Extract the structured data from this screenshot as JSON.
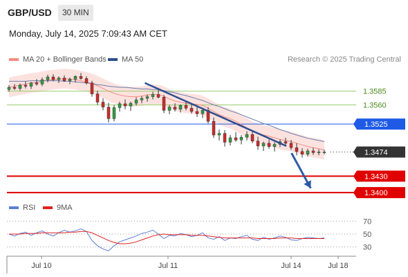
{
  "header": {
    "pair": "GBP/USD",
    "timeframe": "30 MIN",
    "timestamp": "Monday, July 14, 2025 7:09:43 AM CET"
  },
  "legend": {
    "bollinger": "MA 20 + Bollinger Bands",
    "ma50": "MA 50",
    "credit": "Research © 2025 Trading Central",
    "colors": {
      "bollinger": "#f28b82",
      "ma50": "#2e4d8f"
    }
  },
  "rsi_legend": {
    "rsi": "RSI",
    "ma": "9MA",
    "colors": {
      "rsi": "#5b7fd6",
      "ma": "#e02020"
    }
  },
  "chart_data": [
    {
      "type": "candlestick",
      "title": "",
      "x_labels": [
        "Jul 10",
        "Jul 11",
        "Jul 14",
        "Jul 18"
      ],
      "ylim": [
        1.3385,
        1.3625
      ],
      "levels": [
        {
          "value": 1.3585,
          "label": "1.3585",
          "kind": "resistance",
          "color": "#9acd6a"
        },
        {
          "value": 1.356,
          "label": "1.3560",
          "kind": "resistance",
          "color": "#9acd6a"
        },
        {
          "value": 1.3525,
          "label": "1.3525",
          "kind": "pivot",
          "color": "#1e5ae6"
        },
        {
          "value": 1.3474,
          "label": "1.3474",
          "kind": "last",
          "color": "#333333"
        },
        {
          "value": 1.343,
          "label": "1.3430",
          "kind": "support",
          "color": "#e00000"
        },
        {
          "value": 1.34,
          "label": "1.3400",
          "kind": "support",
          "color": "#e00000"
        }
      ],
      "trendline": {
        "from": [
          0.395,
          1.36
        ],
        "to": [
          0.8,
          1.3485
        ]
      },
      "forecast_arrow": {
        "from": [
          0.815,
          1.3472
        ],
        "to": [
          0.87,
          1.3408
        ]
      },
      "ma20": [
        1.3592,
        1.3594,
        1.3596,
        1.3598,
        1.36,
        1.3601,
        1.3603,
        1.3605,
        1.3606,
        1.3607,
        1.3608,
        1.3607,
        1.3606,
        1.3604,
        1.3602,
        1.3599,
        1.3595,
        1.359,
        1.3585,
        1.3581,
        1.3578,
        1.3576,
        1.3575,
        1.3575,
        1.3576,
        1.3578,
        1.3579,
        1.3579,
        1.3576,
        1.3571,
        1.3567,
        1.3565,
        1.3563,
        1.3562,
        1.3561,
        1.3559,
        1.3554,
        1.3548,
        1.3542,
        1.3538,
        1.3535,
        1.353,
        1.3524,
        1.3518,
        1.3512,
        1.3508,
        1.3505,
        1.3503,
        1.35,
        1.3497,
        1.3495,
        1.3493,
        1.349,
        1.3487,
        1.3484,
        1.3482,
        1.348,
        1.3478
      ],
      "ma50": [
        1.3603,
        1.3603,
        1.3603,
        1.3603,
        1.3604,
        1.3604,
        1.3604,
        1.3604,
        1.3604,
        1.3604,
        1.3603,
        1.3603,
        1.3602,
        1.3601,
        1.36,
        1.3599,
        1.3597,
        1.3596,
        1.3594,
        1.3593,
        1.3592,
        1.3592,
        1.3591,
        1.359,
        1.3589,
        1.3589,
        1.3588,
        1.3588,
        1.3586,
        1.3584,
        1.3582,
        1.3579,
        1.3577,
        1.3574,
        1.3571,
        1.3568,
        1.3564,
        1.356,
        1.3557,
        1.3553,
        1.3549,
        1.3546,
        1.3542,
        1.3538,
        1.3534,
        1.353,
        1.3526,
        1.3523,
        1.3519,
        1.3515,
        1.3512,
        1.3508,
        1.3505,
        1.3502,
        1.3499,
        1.3497,
        1.3495,
        1.3493
      ],
      "bb_width": 0.0018,
      "ohlc": [
        [
          1.3588,
          1.3596,
          1.3584,
          1.3592
        ],
        [
          1.3592,
          1.3598,
          1.3587,
          1.359
        ],
        [
          1.359,
          1.3599,
          1.3586,
          1.3596
        ],
        [
          1.3596,
          1.3603,
          1.359,
          1.3594
        ],
        [
          1.3594,
          1.3602,
          1.3589,
          1.36
        ],
        [
          1.36,
          1.3607,
          1.3595,
          1.3598
        ],
        [
          1.3598,
          1.361,
          1.3594,
          1.3606
        ],
        [
          1.3606,
          1.3615,
          1.3601,
          1.3611
        ],
        [
          1.3611,
          1.3616,
          1.3603,
          1.3606
        ],
        [
          1.3606,
          1.3612,
          1.36,
          1.3609
        ],
        [
          1.3609,
          1.3614,
          1.3602,
          1.3604
        ],
        [
          1.3604,
          1.361,
          1.3598,
          1.3607
        ],
        [
          1.3607,
          1.3614,
          1.3601,
          1.3612
        ],
        [
          1.3612,
          1.3618,
          1.3606,
          1.3608
        ],
        [
          1.3608,
          1.3612,
          1.3597,
          1.36
        ],
        [
          1.36,
          1.3604,
          1.3575,
          1.358
        ],
        [
          1.358,
          1.3586,
          1.356,
          1.3565
        ],
        [
          1.3565,
          1.3572,
          1.355,
          1.3556
        ],
        [
          1.3556,
          1.3564,
          1.3528,
          1.3535
        ],
        [
          1.3535,
          1.356,
          1.353,
          1.3555
        ],
        [
          1.3555,
          1.3566,
          1.3548,
          1.3562
        ],
        [
          1.3562,
          1.357,
          1.3552,
          1.3558
        ],
        [
          1.3558,
          1.3566,
          1.3549,
          1.3563
        ],
        [
          1.3563,
          1.3574,
          1.3559,
          1.3569
        ],
        [
          1.3569,
          1.3576,
          1.3563,
          1.3572
        ],
        [
          1.3572,
          1.3579,
          1.3566,
          1.3575
        ],
        [
          1.3575,
          1.3584,
          1.357,
          1.3579
        ],
        [
          1.3579,
          1.3588,
          1.3572,
          1.3574
        ],
        [
          1.3574,
          1.3578,
          1.3545,
          1.355
        ],
        [
          1.355,
          1.356,
          1.3543,
          1.3556
        ],
        [
          1.3556,
          1.3563,
          1.3548,
          1.3552
        ],
        [
          1.3552,
          1.3561,
          1.3546,
          1.3559
        ],
        [
          1.3559,
          1.3566,
          1.355,
          1.3554
        ],
        [
          1.3554,
          1.3562,
          1.3544,
          1.3548
        ],
        [
          1.3548,
          1.3557,
          1.3538,
          1.3544
        ],
        [
          1.3544,
          1.3555,
          1.3536,
          1.355
        ],
        [
          1.355,
          1.3556,
          1.3526,
          1.353
        ],
        [
          1.353,
          1.3537,
          1.35,
          1.3505
        ],
        [
          1.3505,
          1.3515,
          1.3495,
          1.3508
        ],
        [
          1.3508,
          1.3514,
          1.3484,
          1.3492
        ],
        [
          1.3492,
          1.3505,
          1.3486,
          1.35
        ],
        [
          1.35,
          1.351,
          1.3493,
          1.3496
        ],
        [
          1.3496,
          1.3505,
          1.3488,
          1.3501
        ],
        [
          1.3501,
          1.3512,
          1.3495,
          1.3506
        ],
        [
          1.3506,
          1.3511,
          1.349,
          1.3494
        ],
        [
          1.3494,
          1.3502,
          1.3478,
          1.3485
        ],
        [
          1.3485,
          1.3493,
          1.3476,
          1.349
        ],
        [
          1.349,
          1.3497,
          1.348,
          1.3484
        ],
        [
          1.3484,
          1.3492,
          1.3475,
          1.3488
        ],
        [
          1.3488,
          1.3497,
          1.3483,
          1.3493
        ],
        [
          1.3493,
          1.35,
          1.3486,
          1.349
        ],
        [
          1.349,
          1.3496,
          1.3478,
          1.3482
        ],
        [
          1.3482,
          1.349,
          1.3468,
          1.3475
        ],
        [
          1.3475,
          1.3481,
          1.3464,
          1.347
        ],
        [
          1.347,
          1.348,
          1.3466,
          1.3476
        ],
        [
          1.3476,
          1.3482,
          1.3469,
          1.3473
        ],
        [
          1.3473,
          1.3479,
          1.3468,
          1.3474
        ],
        [
          1.3474,
          1.3478,
          1.347,
          1.3474
        ]
      ]
    },
    {
      "type": "line",
      "title": "",
      "ylim": [
        20,
        80
      ],
      "y_ticks": [
        70,
        50,
        30
      ],
      "ref_lines": [
        70,
        50,
        30
      ],
      "series": [
        {
          "name": "RSI",
          "values": [
            50,
            47,
            51,
            53,
            48,
            52,
            55,
            50,
            47,
            52,
            56,
            53,
            55,
            58,
            54,
            40,
            32,
            27,
            24,
            32,
            38,
            41,
            44,
            47,
            51,
            53,
            56,
            50,
            43,
            48,
            47,
            51,
            49,
            46,
            48,
            52,
            44,
            42,
            46,
            40,
            44,
            43,
            46,
            48,
            42,
            40,
            45,
            42,
            44,
            47,
            45,
            41,
            40,
            43,
            45,
            44,
            43,
            44
          ]
        },
        {
          "name": "9MA",
          "values": [
            50,
            50,
            50,
            51,
            51,
            51,
            52,
            52,
            52,
            52,
            52,
            53,
            53,
            54,
            54,
            52,
            48,
            44,
            40,
            37,
            35,
            35,
            36,
            38,
            41,
            44,
            47,
            49,
            50,
            49,
            49,
            49,
            49,
            48,
            48,
            48,
            47,
            46,
            45,
            44,
            44,
            44,
            44,
            44,
            44,
            43,
            43,
            43,
            43,
            44,
            44,
            44,
            43,
            43,
            43,
            43,
            43,
            43
          ]
        }
      ]
    }
  ]
}
